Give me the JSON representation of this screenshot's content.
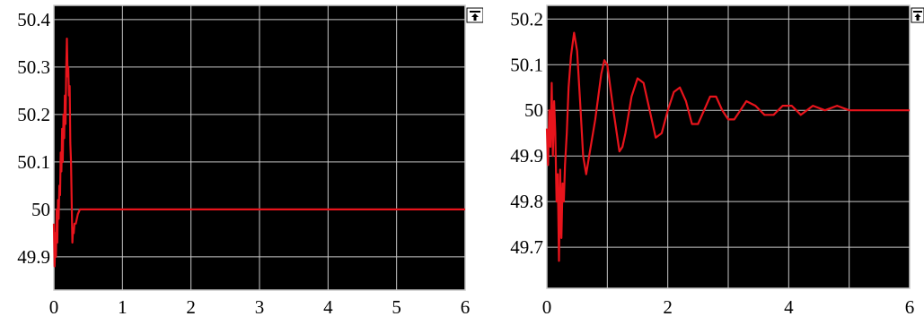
{
  "colors": {
    "plot_background": "#000000",
    "grid": "#c8c8c8",
    "series": "#e8141c",
    "frame": "#ffffff",
    "tick_text": "#000000"
  },
  "icons": {
    "restore": "restore-window-icon"
  },
  "chart_data": [
    {
      "type": "line",
      "title": "",
      "xlabel": "",
      "ylabel": "",
      "xlim": [
        0,
        6
      ],
      "ylim": [
        49.83,
        50.43
      ],
      "grid": true,
      "legend": "none",
      "x_ticks": [
        0,
        1,
        2,
        3,
        4,
        5,
        6
      ],
      "x_tick_labels": [
        "0",
        "1",
        "2",
        "3",
        "4",
        "5",
        "6"
      ],
      "y_ticks": [
        49.9,
        50,
        50.1,
        50.2,
        50.3,
        50.4
      ],
      "y_tick_labels": [
        "49.9",
        "50",
        "50.1",
        "50.2",
        "50.3",
        "50.4"
      ],
      "series": [
        {
          "x": [
            0,
            0.01,
            0.02,
            0.03,
            0.04,
            0.05,
            0.06,
            0.07,
            0.08,
            0.09,
            0.1,
            0.11,
            0.12,
            0.13,
            0.14,
            0.15,
            0.16,
            0.17,
            0.18,
            0.19,
            0.2,
            0.21,
            0.22,
            0.23,
            0.24,
            0.25,
            0.26,
            0.27,
            0.28,
            0.29,
            0.3,
            0.32,
            0.35,
            0.38,
            0.42,
            0.5,
            1,
            2,
            3,
            4,
            5,
            6
          ],
          "y": [
            49.97,
            49.88,
            49.95,
            49.9,
            50.0,
            49.93,
            50.02,
            49.98,
            50.05,
            50.03,
            50.12,
            50.08,
            50.17,
            50.1,
            50.2,
            50.15,
            50.24,
            50.18,
            50.29,
            50.36,
            50.28,
            50.3,
            50.24,
            50.26,
            50.14,
            50.1,
            50.02,
            49.93,
            49.96,
            49.95,
            49.97,
            49.97,
            49.99,
            50.0,
            50.0,
            50.0,
            50.0,
            50.0,
            50.0,
            50.0,
            50.0,
            50.0
          ]
        }
      ]
    },
    {
      "type": "line",
      "title": "",
      "xlabel": "",
      "ylabel": "",
      "xlim": [
        0,
        6
      ],
      "ylim": [
        49.61,
        50.23
      ],
      "grid": true,
      "legend": "none",
      "x_ticks": [
        0,
        1,
        2,
        3,
        4,
        5,
        6
      ],
      "x_tick_labels": [
        "0",
        "",
        "2",
        "",
        "4",
        "",
        "6"
      ],
      "y_ticks": [
        49.7,
        49.8,
        49.9,
        50,
        50.1,
        50.2
      ],
      "y_tick_labels": [
        "49.7",
        "49.8",
        "49.9",
        "50",
        "50.1",
        "50.2"
      ],
      "series": [
        {
          "x": [
            0,
            0.02,
            0.04,
            0.06,
            0.08,
            0.1,
            0.12,
            0.14,
            0.16,
            0.18,
            0.2,
            0.22,
            0.24,
            0.26,
            0.28,
            0.3,
            0.33,
            0.36,
            0.4,
            0.45,
            0.5,
            0.55,
            0.6,
            0.65,
            0.7,
            0.8,
            0.9,
            0.95,
            1.0,
            1.1,
            1.2,
            1.25,
            1.3,
            1.4,
            1.5,
            1.6,
            1.7,
            1.8,
            1.9,
            2.0,
            2.1,
            2.2,
            2.3,
            2.4,
            2.5,
            2.6,
            2.7,
            2.8,
            2.9,
            3.0,
            3.1,
            3.2,
            3.3,
            3.45,
            3.6,
            3.75,
            3.9,
            4.05,
            4.2,
            4.4,
            4.6,
            4.8,
            5.0,
            5.2,
            5.4,
            5.6,
            5.8,
            6.0
          ],
          "y": [
            49.96,
            49.88,
            50.0,
            49.92,
            50.06,
            49.9,
            50.02,
            49.95,
            49.8,
            49.86,
            49.67,
            49.87,
            49.72,
            49.84,
            49.8,
            49.88,
            49.95,
            50.05,
            50.12,
            50.17,
            50.13,
            50.02,
            49.9,
            49.86,
            49.9,
            49.98,
            50.08,
            50.11,
            50.1,
            50.0,
            49.91,
            49.92,
            49.95,
            50.03,
            50.07,
            50.06,
            50.0,
            49.94,
            49.95,
            50.0,
            50.04,
            50.05,
            50.02,
            49.97,
            49.97,
            50.0,
            50.03,
            50.03,
            50.0,
            49.98,
            49.98,
            50.0,
            50.02,
            50.01,
            49.99,
            49.99,
            50.01,
            50.01,
            49.99,
            50.01,
            50.0,
            50.01,
            50.0,
            50.0,
            50.0,
            50.0,
            50.0,
            50.0
          ]
        }
      ]
    }
  ]
}
